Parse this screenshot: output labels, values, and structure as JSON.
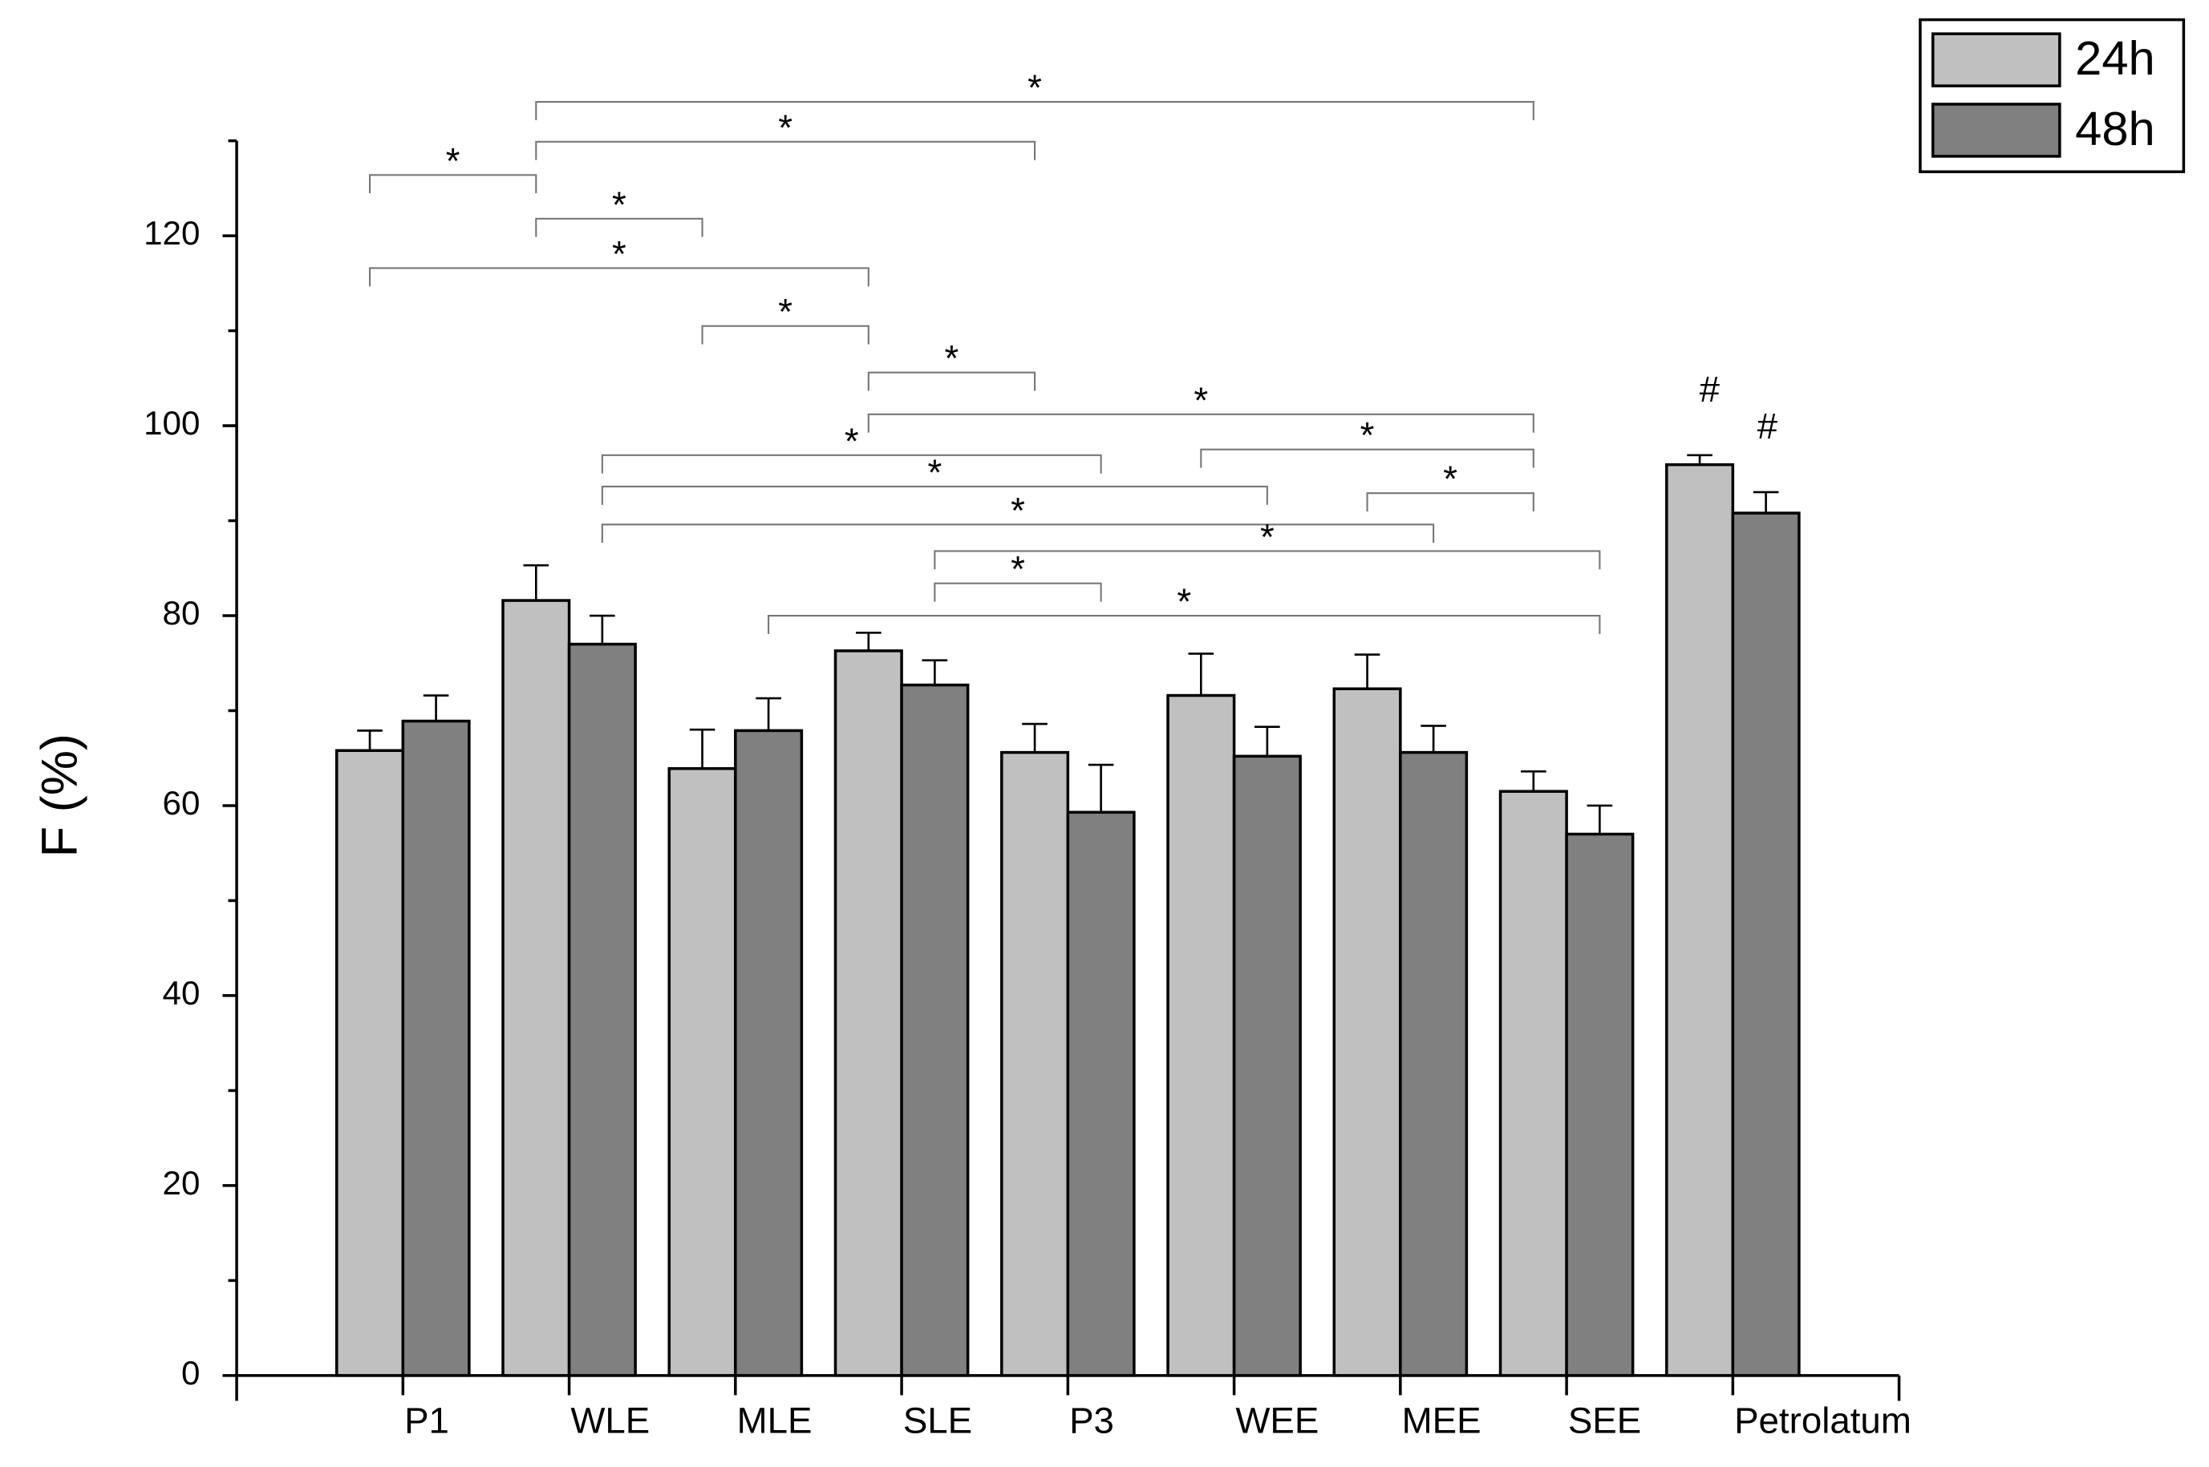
{
  "chart_data": {
    "type": "bar",
    "ylabel": "F (%)",
    "categories": [
      "P1",
      "WLE",
      "MLE",
      "SLE",
      "P3",
      "WEE",
      "MEE",
      "SEE",
      "Petrolatum"
    ],
    "series": [
      {
        "name": "24h",
        "color": "#c0c0c0",
        "values": [
          65.8,
          81.6,
          63.9,
          76.3,
          65.6,
          71.6,
          72.3,
          61.5,
          95.9
        ],
        "errors": [
          2.1,
          3.7,
          4.1,
          1.9,
          3.0,
          4.4,
          3.6,
          2.1,
          1.0
        ]
      },
      {
        "name": "48h",
        "color": "#808080",
        "values": [
          68.9,
          77.0,
          67.9,
          72.7,
          59.3,
          65.2,
          65.6,
          57.0,
          90.8
        ],
        "errors": [
          2.7,
          3.0,
          3.4,
          2.6,
          5.0,
          3.1,
          2.8,
          3.0,
          2.2
        ]
      }
    ],
    "ylim": [
      0,
      130
    ],
    "yticks": [
      0,
      20,
      40,
      60,
      80,
      100,
      120
    ],
    "legend": "upper right",
    "brackets": [
      {
        "text": "*",
        "from": [
          "WLE",
          "24h"
        ],
        "to": [
          "SEE",
          "24h"
        ],
        "y": 134.1
      },
      {
        "text": "*",
        "from": [
          "WLE",
          "24h"
        ],
        "to": [
          "P3",
          "24h"
        ],
        "y": 129.9
      },
      {
        "text": "*",
        "from": [
          "P1",
          "24h"
        ],
        "to": [
          "WLE",
          "24h"
        ],
        "y": 126.4
      },
      {
        "text": "*",
        "from": [
          "WLE",
          "24h"
        ],
        "to": [
          "MLE",
          "24h"
        ],
        "y": 121.8
      },
      {
        "text": "*",
        "from": [
          "P1",
          "24h"
        ],
        "to": [
          "SLE",
          "24h"
        ],
        "y": 116.6
      },
      {
        "text": "*",
        "from": [
          "MLE",
          "24h"
        ],
        "to": [
          "SLE",
          "24h"
        ],
        "y": 110.5
      },
      {
        "text": "*",
        "from": [
          "SLE",
          "24h"
        ],
        "to": [
          "P3",
          "24h"
        ],
        "y": 105.6
      },
      {
        "text": "*",
        "from": [
          "SLE",
          "24h"
        ],
        "to": [
          "SEE",
          "24h"
        ],
        "y": 101.2
      },
      {
        "text": "*",
        "from": [
          "WEE",
          "24h"
        ],
        "to": [
          "SEE",
          "24h"
        ],
        "y": 97.5
      },
      {
        "text": "*",
        "from": [
          "WLE",
          "48h"
        ],
        "to": [
          "P3",
          "48h"
        ],
        "y": 96.9
      },
      {
        "text": "*",
        "from": [
          "WLE",
          "48h"
        ],
        "to": [
          "WEE",
          "48h"
        ],
        "y": 93.6
      },
      {
        "text": "*",
        "from": [
          "MEE",
          "24h"
        ],
        "to": [
          "SEE",
          "24h"
        ],
        "y": 92.9
      },
      {
        "text": "*",
        "from": [
          "WLE",
          "48h"
        ],
        "to": [
          "MEE",
          "48h"
        ],
        "y": 89.6
      },
      {
        "text": "*",
        "from": [
          "SLE",
          "48h"
        ],
        "to": [
          "SEE",
          "48h"
        ],
        "y": 86.8
      },
      {
        "text": "*",
        "from": [
          "SLE",
          "48h"
        ],
        "to": [
          "P3",
          "48h"
        ],
        "y": 83.4
      },
      {
        "text": "*",
        "from": [
          "MLE",
          "48h"
        ],
        "to": [
          "SEE",
          "48h"
        ],
        "y": 80.0
      }
    ],
    "markers": [
      {
        "text": "#",
        "category": "Petrolatum",
        "series": "24h"
      },
      {
        "text": "#",
        "category": "Petrolatum",
        "series": "48h"
      }
    ]
  }
}
